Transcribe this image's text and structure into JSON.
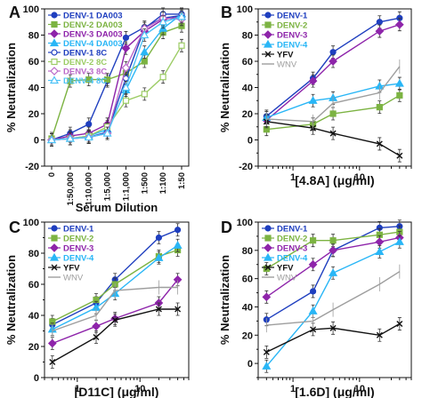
{
  "figure": {
    "panel_letters": [
      "A",
      "B",
      "C",
      "D"
    ]
  },
  "chart_data": [
    {
      "panel": "A",
      "type": "line",
      "xlabel": "Serum Dilution",
      "ylabel": "% Neutralization",
      "categories": [
        "0",
        "1:50,000",
        "1:10,000",
        "1:5,000",
        "1:1,000",
        "1:500",
        "1:100",
        "1:50"
      ],
      "ylim": [
        -20,
        100
      ],
      "yticks": [
        -20,
        0,
        20,
        40,
        60,
        80,
        100
      ],
      "legend_position": "top-left",
      "series": [
        {
          "name": "DENV-1 DA003",
          "color": "#1f3fbf",
          "marker": "circle",
          "filled": true,
          "line": "solid",
          "values": [
            0,
            5,
            12,
            45,
            78,
            86,
            93,
            95
          ]
        },
        {
          "name": "DENV-2 DA003",
          "color": "#7cb342",
          "marker": "square",
          "filled": true,
          "line": "solid",
          "values": [
            1,
            45,
            46,
            46,
            51,
            60,
            82,
            87
          ]
        },
        {
          "name": "DENV-3 DA003",
          "color": "#8e24aa",
          "marker": "diamond",
          "filled": true,
          "line": "solid",
          "values": [
            0,
            3,
            5,
            12,
            70,
            83,
            92,
            94
          ]
        },
        {
          "name": "DENV-4 DA003",
          "color": "#29b6f6",
          "marker": "triangle",
          "filled": true,
          "line": "solid",
          "values": [
            0,
            1,
            3,
            8,
            38,
            67,
            85,
            96
          ]
        },
        {
          "name": "DENV-1 8C",
          "color": "#1f3fbf",
          "marker": "circle",
          "filled": false,
          "line": "solid",
          "values": [
            0,
            1,
            2,
            6,
            47,
            85,
            96,
            96
          ]
        },
        {
          "name": "DENV-2 8C",
          "color": "#9ccc65",
          "marker": "square",
          "filled": false,
          "line": "solid",
          "values": [
            0,
            1,
            3,
            10,
            30,
            35,
            48,
            72
          ]
        },
        {
          "name": "DENV-3 8C",
          "color": "#ba68c8",
          "marker": "diamond",
          "filled": false,
          "line": "solid",
          "values": [
            0,
            1,
            2,
            5,
            55,
            85,
            93,
            92
          ]
        },
        {
          "name": "DENV-4 8C",
          "color": "#4fc3f7",
          "marker": "triangle",
          "filled": false,
          "line": "solid",
          "values": [
            0,
            1,
            2,
            5,
            40,
            80,
            90,
            94
          ]
        }
      ]
    },
    {
      "panel": "B",
      "type": "line",
      "xlabel": "[4.8A] (μg/ml)",
      "ylabel": "% Neutralization",
      "xscale": "log",
      "x": [
        0.4,
        2,
        4,
        20,
        40
      ],
      "xticks": [
        1,
        10
      ],
      "xlim": [
        0.3,
        60
      ],
      "ylim": [
        -20,
        100
      ],
      "yticks": [
        -20,
        -10,
        0,
        10,
        20,
        30,
        40,
        50,
        60,
        70,
        80,
        90,
        100
      ],
      "legend_position": "top-left",
      "series": [
        {
          "name": "DENV-1",
          "color": "#1f3fbf",
          "marker": "circle",
          "values": [
            18,
            47,
            67,
            90,
            93
          ]
        },
        {
          "name": "DENV-2",
          "color": "#7cb342",
          "marker": "square",
          "values": [
            8,
            12,
            20,
            25,
            34
          ]
        },
        {
          "name": "DENV-3",
          "color": "#8e24aa",
          "marker": "diamond",
          "values": [
            15,
            45,
            60,
            83,
            88
          ]
        },
        {
          "name": "DENV-4",
          "color": "#29b6f6",
          "marker": "triangle",
          "values": [
            17,
            30,
            32,
            41,
            43
          ]
        },
        {
          "name": "YFV",
          "color": "#111111",
          "marker": "x",
          "values": [
            14,
            9,
            5,
            -3,
            -12
          ]
        },
        {
          "name": "WNV",
          "color": "#9e9e9e",
          "marker": "none",
          "values": [
            16,
            14,
            28,
            36,
            56
          ]
        }
      ]
    },
    {
      "panel": "C",
      "type": "line",
      "xlabel": "[D11C] (μg/ml)",
      "ylabel": "% Neutralization",
      "xscale": "log",
      "x": [
        0.4,
        2,
        4,
        20,
        40
      ],
      "xticks": [
        1,
        10
      ],
      "xlim": [
        0.3,
        60
      ],
      "ylim": [
        0,
        100
      ],
      "yticks": [
        0,
        10,
        20,
        30,
        40,
        50,
        60,
        70,
        80,
        90,
        100
      ],
      "legend_position": "top-left",
      "series": [
        {
          "name": "DENV-1",
          "color": "#1f3fbf",
          "marker": "circle",
          "values": [
            34,
            48,
            63,
            90,
            95
          ]
        },
        {
          "name": "DENV-2",
          "color": "#7cb342",
          "marker": "square",
          "values": [
            36,
            50,
            60,
            78,
            82
          ]
        },
        {
          "name": "DENV-3",
          "color": "#8e24aa",
          "marker": "diamond",
          "values": [
            22,
            33,
            38,
            48,
            63
          ]
        },
        {
          "name": "DENV-4",
          "color": "#29b6f6",
          "marker": "triangle",
          "values": [
            31,
            45,
            54,
            77,
            85
          ]
        },
        {
          "name": "YFV",
          "color": "#111111",
          "marker": "x",
          "values": [
            10,
            26,
            37,
            44,
            44
          ]
        },
        {
          "name": "WNV",
          "color": "#9e9e9e",
          "marker": "none",
          "values": [
            30,
            40,
            56,
            58,
            58
          ]
        }
      ]
    },
    {
      "panel": "D",
      "type": "line",
      "xlabel": "[1.6D] (μg/ml)",
      "ylabel": "% Neutralization",
      "xscale": "log",
      "x": [
        0.4,
        2,
        4,
        20,
        40
      ],
      "xticks": [
        1,
        10
      ],
      "xlim": [
        0.3,
        60
      ],
      "ylim": [
        -10,
        100
      ],
      "yticks": [
        -10,
        0,
        10,
        20,
        30,
        40,
        50,
        60,
        70,
        80,
        90,
        100
      ],
      "legend_position": "top-left",
      "series": [
        {
          "name": "DENV-1",
          "color": "#1f3fbf",
          "marker": "circle",
          "values": [
            31,
            51,
            80,
            96,
            97
          ]
        },
        {
          "name": "DENV-2",
          "color": "#7cb342",
          "marker": "square",
          "values": [
            67,
            87,
            87,
            91,
            93
          ]
        },
        {
          "name": "DENV-3",
          "color": "#8e24aa",
          "marker": "diamond",
          "values": [
            47,
            70,
            80,
            86,
            89
          ]
        },
        {
          "name": "DENV-4",
          "color": "#29b6f6",
          "marker": "triangle",
          "values": [
            -2,
            37,
            64,
            79,
            86
          ]
        },
        {
          "name": "YFV",
          "color": "#111111",
          "marker": "x",
          "values": [
            8,
            24,
            25,
            20,
            28
          ]
        },
        {
          "name": "WNV",
          "color": "#9e9e9e",
          "marker": "none",
          "values": [
            27,
            30,
            38,
            56,
            65
          ]
        }
      ]
    }
  ]
}
